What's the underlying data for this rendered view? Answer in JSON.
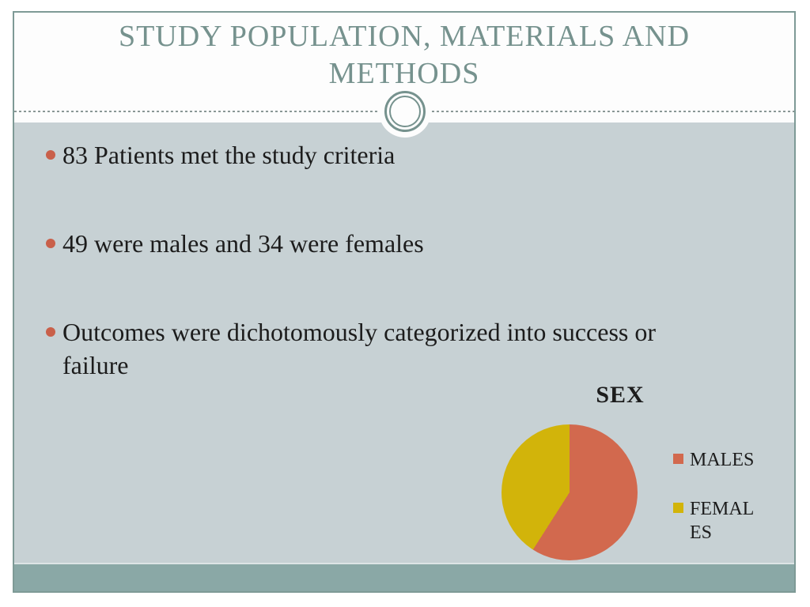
{
  "slide": {
    "title_lines": [
      "STUDY POPULATION, MATERIALS AND",
      "METHODS"
    ],
    "bullets": [
      "83 Patients met the study criteria",
      "49 were males and 34 were females",
      "Outcomes were dichotomously categorized into success or failure"
    ]
  },
  "chart_data": {
    "type": "pie",
    "title": "SEX",
    "labels": [
      "MALES",
      "FEMALES"
    ],
    "values": [
      49,
      34
    ],
    "colors": [
      "#d2694e",
      "#d2b40a"
    ],
    "start_angle_deg": 0,
    "direction": "clockwise",
    "legend_position": "right"
  },
  "colors": {
    "title_col": "#76928e",
    "text_col": "#1c1c1c",
    "header_bg": "#fdfdfd",
    "content_bg": "#c7d1d4",
    "footer_bg": "#8aa8a6",
    "border_col": "#7e9a96",
    "dash_col": "#8a9896",
    "bullet_dot": "#c9604a"
  }
}
